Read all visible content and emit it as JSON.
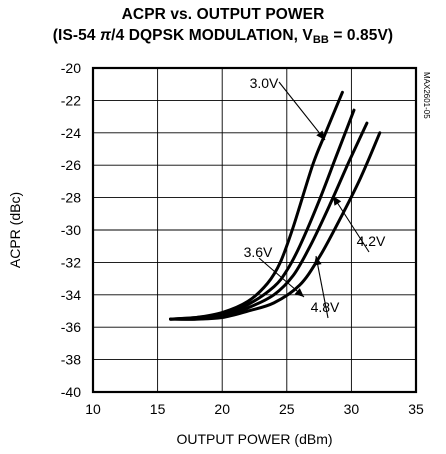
{
  "chart_data": {
    "type": "line",
    "title": "ACPR vs. OUTPUT POWER",
    "subtitle_prefix": "(IS-54 ",
    "subtitle_pi": "π",
    "subtitle_mid": "/4 DQPSK MODULATION, V",
    "subtitle_sub": "BB",
    "subtitle_suffix": " = 0.85V)",
    "xlabel": "OUTPUT POWER (dBm)",
    "ylabel": "ACPR (dBc)",
    "xlim": [
      10,
      35
    ],
    "ylim": [
      -40,
      -20
    ],
    "xticks": [
      10,
      15,
      20,
      25,
      30,
      35
    ],
    "yticks": [
      -20,
      -22,
      -24,
      -26,
      -28,
      -30,
      -32,
      -34,
      -36,
      -38,
      -40
    ],
    "grid": true,
    "watermark": "MAX2601-05",
    "series": [
      {
        "name": "3.0V",
        "x": [
          16.0,
          18.0,
          20.0,
          22.0,
          23.5,
          24.5,
          25.5,
          27.0,
          28.0,
          29.3
        ],
        "y": [
          -35.5,
          -35.4,
          -35.1,
          -34.4,
          -33.3,
          -32.0,
          -29.8,
          -26.0,
          -24.0,
          -21.5
        ]
      },
      {
        "name": "3.6V",
        "x": [
          16.0,
          18.0,
          20.0,
          22.0,
          24.0,
          25.0,
          26.0,
          27.5,
          28.8,
          30.2
        ],
        "y": [
          -35.5,
          -35.4,
          -35.2,
          -34.6,
          -33.5,
          -32.5,
          -31.0,
          -28.2,
          -25.5,
          -22.6
        ]
      },
      {
        "name": "4.2V",
        "x": [
          16.0,
          18.0,
          20.0,
          22.0,
          24.0,
          25.5,
          26.8,
          28.3,
          29.8,
          31.2
        ],
        "y": [
          -35.5,
          -35.5,
          -35.3,
          -34.8,
          -34.0,
          -32.8,
          -31.0,
          -28.5,
          -25.8,
          -23.4
        ]
      },
      {
        "name": "4.8V",
        "x": [
          16.0,
          18.0,
          20.0,
          22.0,
          24.0,
          26.0,
          27.5,
          29.0,
          30.7,
          32.2
        ],
        "y": [
          -35.5,
          -35.5,
          -35.4,
          -35.0,
          -34.5,
          -33.4,
          -31.7,
          -29.5,
          -26.8,
          -24.0
        ]
      }
    ]
  }
}
